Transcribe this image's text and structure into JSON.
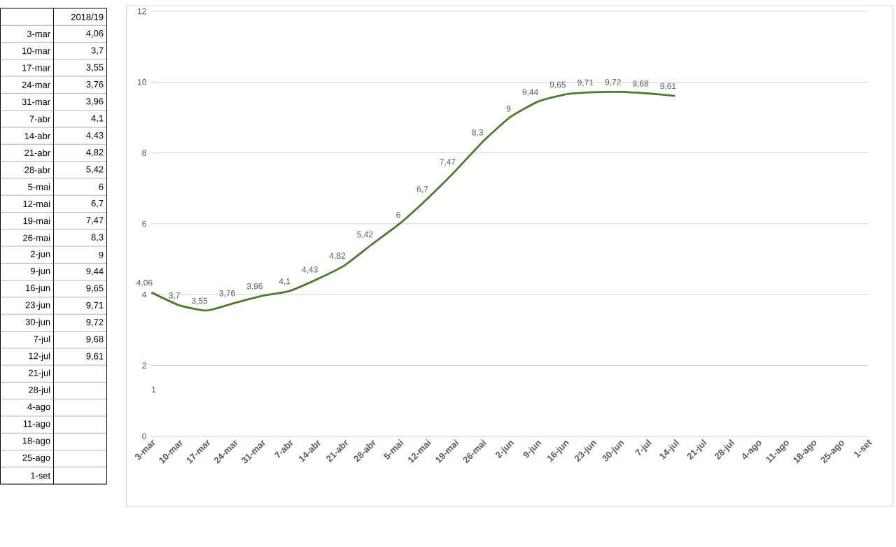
{
  "chart_data": {
    "type": "line",
    "categories": [
      "3-mar",
      "10-mar",
      "17-mar",
      "24-mar",
      "31-mar",
      "7-abr",
      "14-abr",
      "21-abr",
      "28-abr",
      "5-mai",
      "12-mai",
      "19-mai",
      "26-mai",
      "2-jun",
      "9-jun",
      "16-jun",
      "23-jun",
      "30-jun",
      "7-jul",
      "14-jul",
      "21-jul",
      "28-jul",
      "4-ago",
      "11-ago",
      "18-ago",
      "25-ago",
      "1-set"
    ],
    "values": [
      4.06,
      3.7,
      3.55,
      3.76,
      3.96,
      4.1,
      4.43,
      4.82,
      5.42,
      6,
      6.7,
      7.47,
      8.3,
      9,
      9.44,
      9.65,
      9.71,
      9.72,
      9.68,
      9.61,
      null,
      null,
      null,
      null,
      null,
      null,
      null
    ],
    "value_labels": [
      "4,06",
      "3,7",
      "3,55",
      "3,76",
      "3,96",
      "4,1",
      "4,43",
      "4,82",
      "5,42",
      "6",
      "6,7",
      "7,47",
      "8,3",
      "9",
      "9,44",
      "9,65",
      "9,71",
      "9,72",
      "9,68",
      "9,61",
      null,
      null,
      null,
      null,
      null,
      null,
      null
    ],
    "color": "#4e7a2f",
    "ylim": [
      0,
      12
    ],
    "yticks": [
      0,
      2,
      4,
      6,
      8,
      10,
      12
    ],
    "grid": "y",
    "annotations": [
      "2018/19",
      "3-mar",
      "10-mar",
      "17-mar",
      "24-mar",
      "31-mar",
      "7-abr",
      "14-abr",
      "21-abr",
      "28-abr",
      "5-mai",
      "12-mai",
      "19-mai",
      "26-mai",
      "2-jun",
      "9-jun",
      "16-jun",
      "23-jun",
      "30-jun",
      "7-jul",
      "12-jul",
      "21-jul",
      "28-jul",
      "4-ago",
      "11-ago",
      "18-ago",
      "25-ago",
      "1-set",
      "1"
    ]
  }
}
